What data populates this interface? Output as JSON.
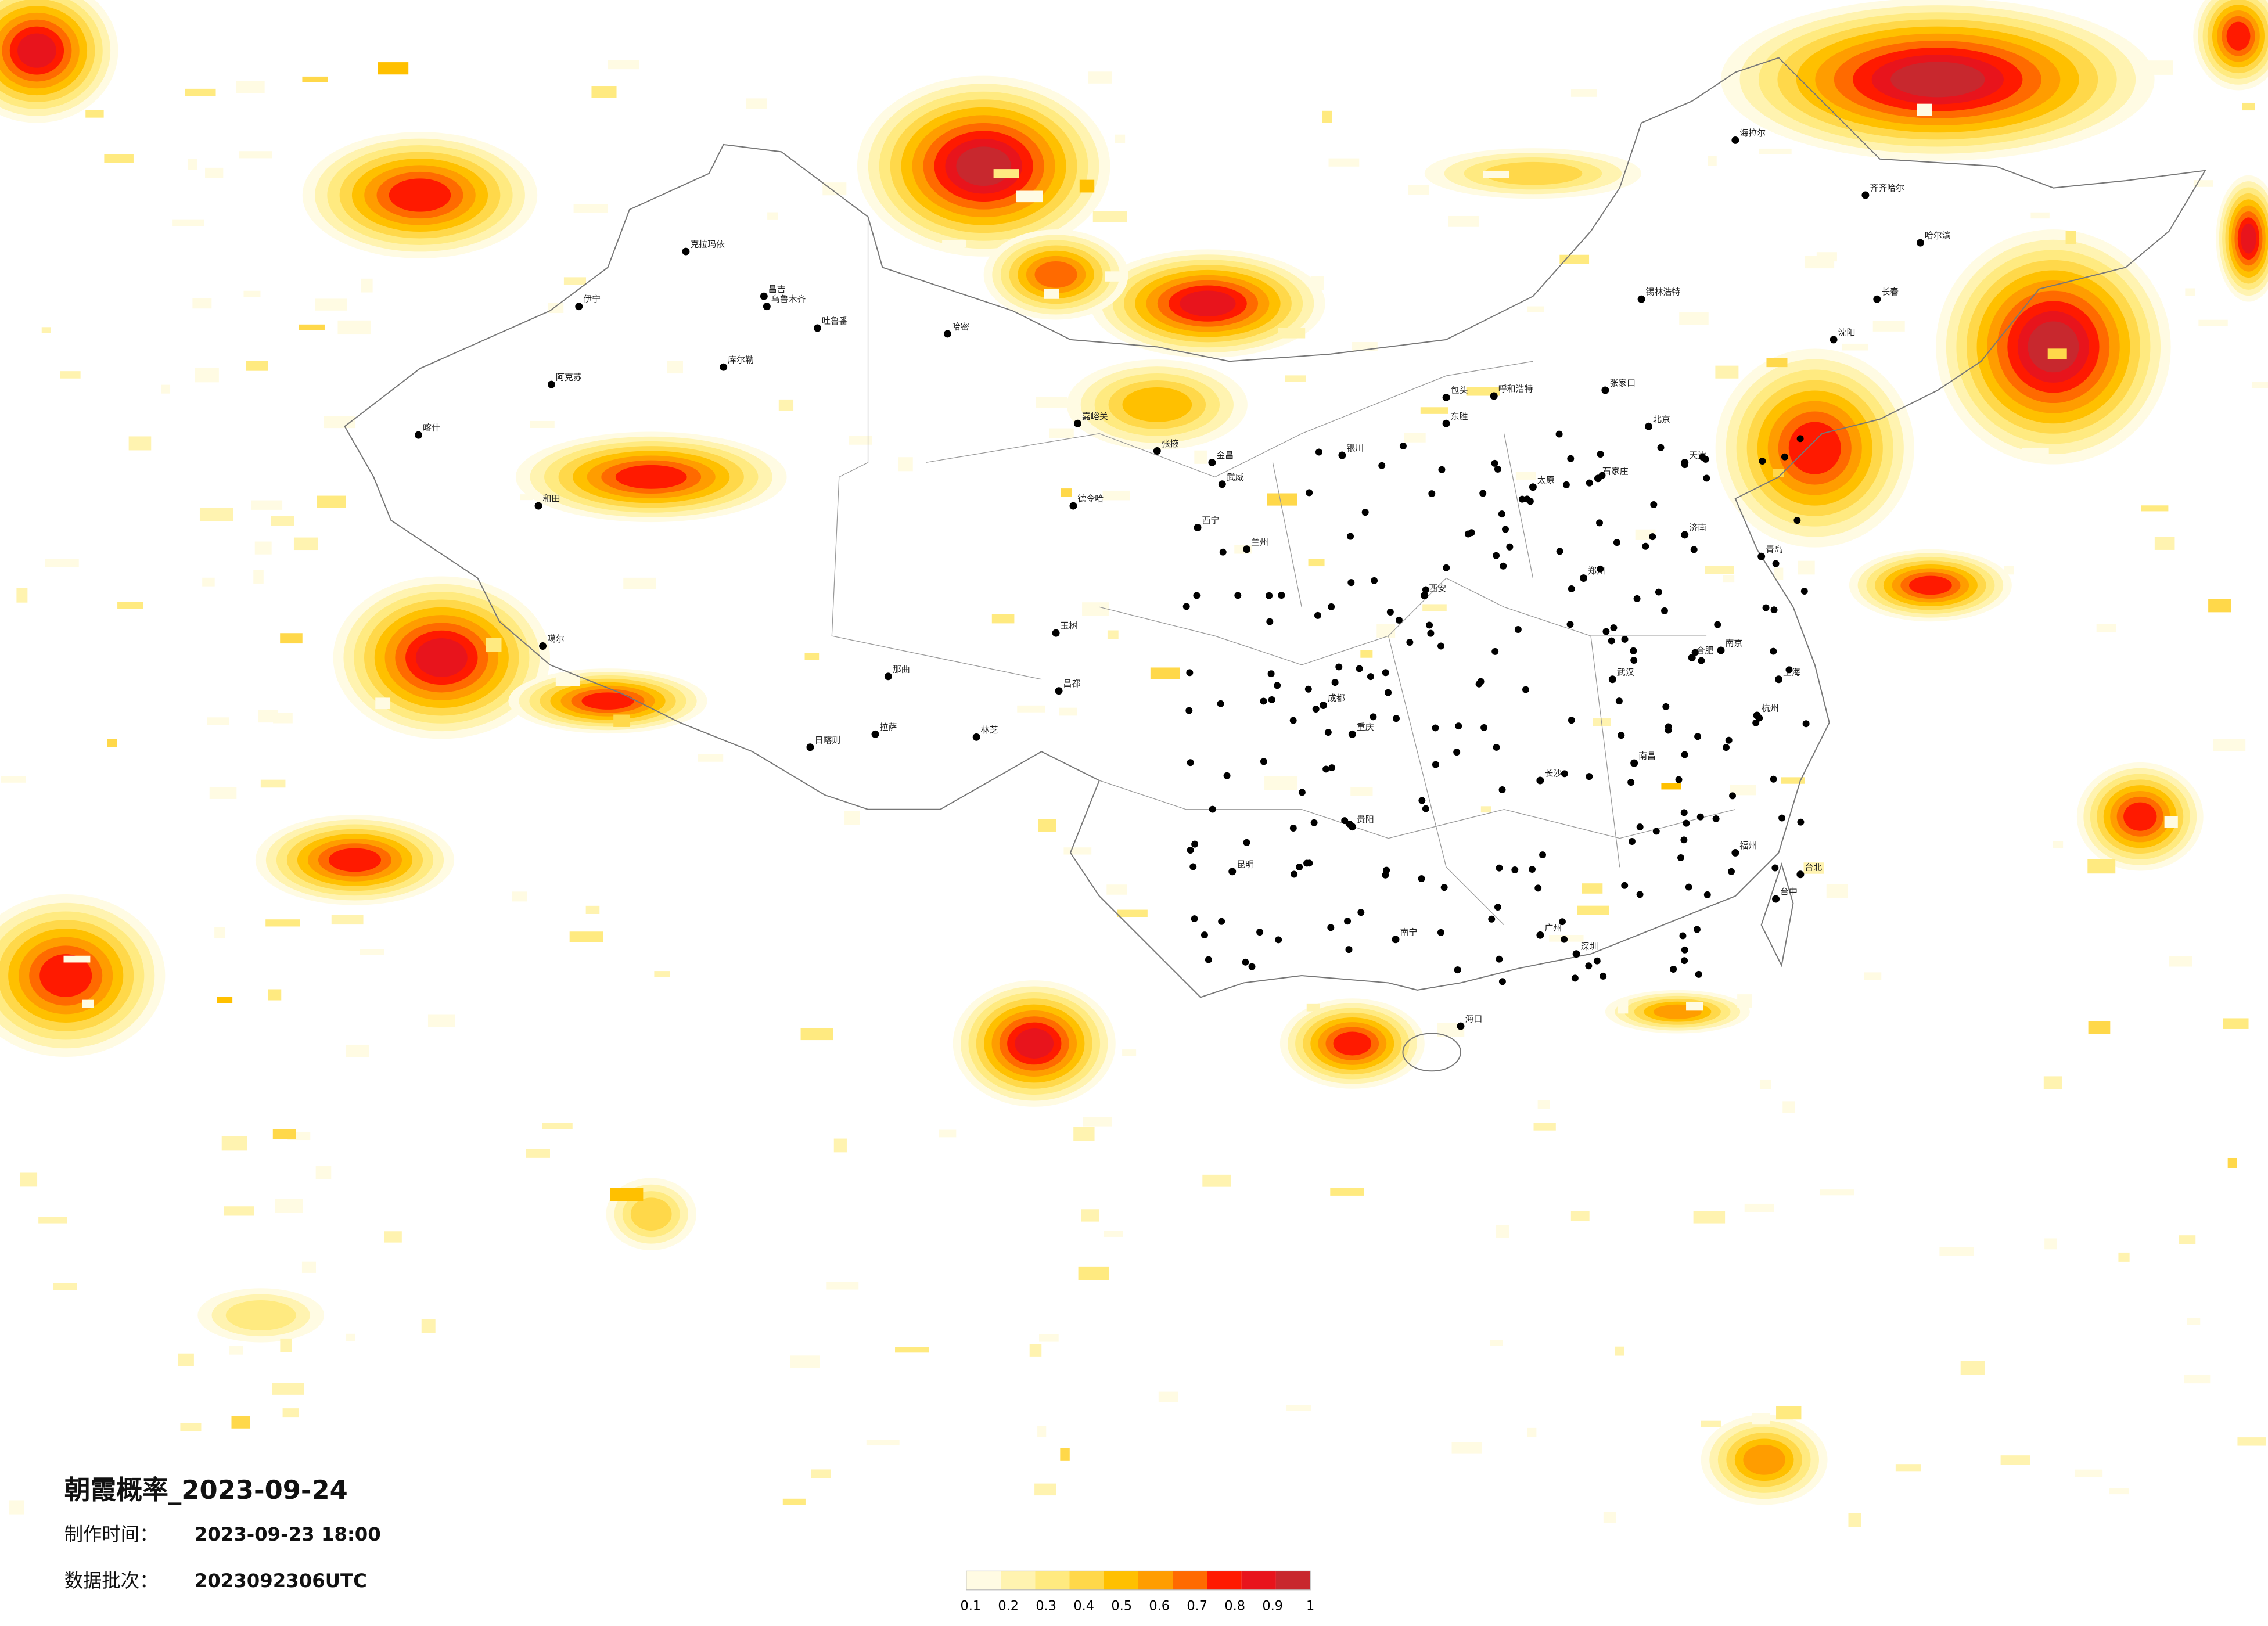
{
  "header": {
    "title": "朝霞概率_2023-09-24",
    "made_label": "制作时间：",
    "made_value": "2023-09-23 18:00",
    "batch_label": "数据批次：",
    "batch_value": "2023092306UTC"
  },
  "legend": {
    "ticks": [
      0.1,
      0.2,
      0.3,
      0.4,
      0.5,
      0.6,
      0.7,
      0.8,
      0.9,
      1
    ],
    "colors": [
      "#fffbe3",
      "#fff3b0",
      "#ffea80",
      "#ffd84a",
      "#ffc000",
      "#ff9d00",
      "#ff6a00",
      "#ff1a00",
      "#e8141c",
      "#c8282e"
    ]
  },
  "cities": [
    "伊宁",
    "克拉玛依",
    "昌吉",
    "乌鲁木齐",
    "吐鲁番",
    "哈密",
    "阿克苏",
    "库尔勒",
    "喀什",
    "和田",
    "噶尔",
    "那曲",
    "日喀则",
    "拉萨",
    "林芝",
    "昌都",
    "玉树",
    "德令哈",
    "嘉峪关",
    "张掖",
    "金昌",
    "武威",
    "西宁",
    "兰州",
    "银川",
    "呼和浩特",
    "包头",
    "东胜",
    "北京",
    "天津",
    "石家庄",
    "太原",
    "济南",
    "青岛",
    "郑州",
    "西安",
    "成都",
    "重庆",
    "贵阳",
    "昆明",
    "南宁",
    "广州",
    "深圳",
    "海口",
    "福州",
    "台北",
    "台中",
    "南昌",
    "长沙",
    "武汉",
    "合肥",
    "南京",
    "上海",
    "杭州",
    "沈阳",
    "长春",
    "哈尔滨",
    "齐齐哈尔",
    "海拉尔",
    "锡林浩特",
    "张家口"
  ]
}
